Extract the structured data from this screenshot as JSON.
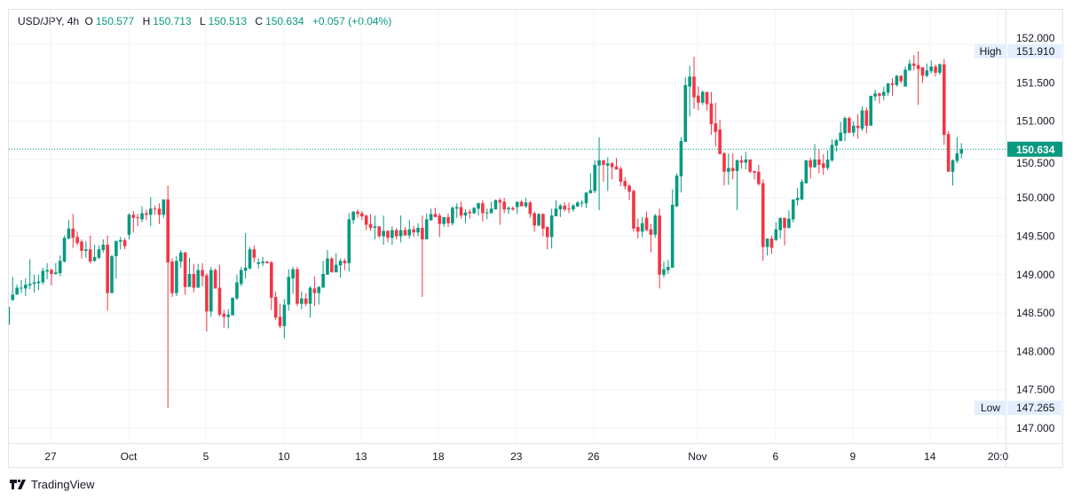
{
  "legend": {
    "symbol": "USD/JPY, 4h",
    "o_label": "O",
    "o": "150.577",
    "h_label": "H",
    "h": "150.713",
    "l_label": "L",
    "l": "150.513",
    "c_label": "C",
    "c": "150.634",
    "change": "+0.057 (+0.04%)"
  },
  "high_marker": {
    "label": "High",
    "value": "151.910"
  },
  "low_marker": {
    "label": "Low",
    "value": "147.265"
  },
  "last_price": "150.634",
  "branding": "TradingView",
  "colors": {
    "up": "#089981",
    "down": "#f23645",
    "grid": "#f0f3fa",
    "axis_text": "#131722",
    "marker_bg": "#e3effd"
  },
  "chart_data": {
    "type": "candlestick",
    "title": "USD/JPY, 4h",
    "ylim": [
      146.8,
      152.1
    ],
    "grid": true,
    "y_ticks": [
      "147.000",
      "147.500",
      "148.000",
      "148.500",
      "149.000",
      "149.500",
      "150.000",
      "150.500",
      "151.000",
      "151.500",
      "152.000"
    ],
    "x_ticks": [
      {
        "label": "27",
        "bar": 9.8
      },
      {
        "label": "Oct",
        "bar": 27.9
      },
      {
        "label": "5",
        "bar": 45.8
      },
      {
        "label": "10",
        "bar": 63.9
      },
      {
        "label": "13",
        "bar": 81.8
      },
      {
        "label": "18",
        "bar": 99.7
      },
      {
        "label": "23",
        "bar": 117.8
      },
      {
        "label": "26",
        "bar": 135.7
      },
      {
        "label": "Nov",
        "bar": 159.8
      },
      {
        "label": "6",
        "bar": 177.9
      },
      {
        "label": "9",
        "bar": 195.8
      },
      {
        "label": "14",
        "bar": 213.7
      },
      {
        "label": "20:0",
        "bar": 229.5
      }
    ],
    "ohlc_fields": [
      "open",
      "high",
      "low",
      "close"
    ],
    "candles": [
      [
        148.35,
        148.6,
        148.35,
        148.58
      ],
      [
        148.67,
        148.97,
        148.66,
        148.74
      ],
      [
        148.74,
        148.87,
        148.74,
        148.83
      ],
      [
        148.82,
        148.93,
        148.76,
        148.83
      ],
      [
        148.82,
        148.95,
        148.72,
        148.87
      ],
      [
        148.86,
        149.2,
        148.81,
        148.88
      ],
      [
        148.88,
        149.0,
        148.77,
        148.9
      ],
      [
        148.89,
        149.0,
        148.8,
        148.91
      ],
      [
        148.9,
        149.09,
        148.87,
        149.05
      ],
      [
        149.04,
        149.15,
        148.94,
        149.06
      ],
      [
        149.06,
        149.08,
        148.86,
        149.01
      ],
      [
        149.01,
        149.15,
        149.0,
        149.03
      ],
      [
        149.02,
        149.25,
        148.98,
        149.18
      ],
      [
        149.17,
        149.51,
        149.16,
        149.48
      ],
      [
        149.47,
        149.71,
        149.46,
        149.6
      ],
      [
        149.6,
        149.79,
        149.35,
        149.48
      ],
      [
        149.49,
        149.56,
        149.38,
        149.41
      ],
      [
        149.43,
        149.46,
        149.21,
        149.31
      ],
      [
        149.31,
        149.44,
        149.22,
        149.33
      ],
      [
        149.33,
        149.51,
        149.15,
        149.17
      ],
      [
        149.18,
        149.39,
        149.17,
        149.23
      ],
      [
        149.22,
        149.38,
        149.2,
        149.33
      ],
      [
        149.32,
        149.46,
        149.29,
        149.39
      ],
      [
        149.39,
        149.51,
        148.53,
        148.76
      ],
      [
        148.76,
        149.26,
        148.76,
        149.24
      ],
      [
        149.24,
        149.44,
        148.95,
        149.44
      ],
      [
        149.43,
        149.49,
        149.33,
        149.45
      ],
      [
        149.45,
        149.48,
        149.33,
        149.37
      ],
      [
        149.52,
        149.8,
        149.46,
        149.78
      ],
      [
        149.78,
        149.83,
        149.55,
        149.74
      ],
      [
        149.75,
        149.79,
        149.63,
        149.74
      ],
      [
        149.72,
        149.89,
        149.68,
        149.8
      ],
      [
        149.8,
        149.85,
        149.71,
        149.78
      ],
      [
        149.78,
        150.01,
        149.63,
        149.86
      ],
      [
        149.86,
        149.9,
        149.78,
        149.85
      ],
      [
        149.86,
        149.93,
        149.66,
        149.78
      ],
      [
        149.78,
        149.98,
        149.74,
        149.98
      ],
      [
        149.98,
        150.16,
        147.265,
        149.16
      ],
      [
        149.17,
        149.21,
        148.71,
        148.76
      ],
      [
        148.76,
        149.24,
        148.72,
        149.18
      ],
      [
        149.17,
        149.32,
        149.09,
        149.29
      ],
      [
        149.29,
        149.29,
        148.74,
        148.84
      ],
      [
        148.84,
        149.22,
        148.84,
        149.01
      ],
      [
        149.01,
        149.14,
        148.77,
        148.83
      ],
      [
        148.83,
        149.14,
        148.83,
        149.06
      ],
      [
        149.06,
        149.15,
        148.85,
        148.98
      ],
      [
        148.99,
        149.02,
        148.26,
        148.52
      ],
      [
        148.52,
        149.1,
        148.45,
        149.06
      ],
      [
        149.06,
        149.08,
        148.82,
        148.82
      ],
      [
        148.83,
        149.13,
        148.46,
        148.48
      ],
      [
        148.49,
        148.54,
        148.31,
        148.45
      ],
      [
        148.45,
        148.55,
        148.3,
        148.48
      ],
      [
        148.47,
        148.7,
        148.47,
        148.7
      ],
      [
        148.69,
        149.0,
        148.67,
        148.9
      ],
      [
        148.88,
        149.1,
        148.85,
        149.06
      ],
      [
        149.05,
        149.54,
        148.95,
        149.09
      ],
      [
        149.08,
        149.36,
        149.07,
        149.33
      ],
      [
        149.33,
        149.38,
        149.16,
        149.22
      ],
      [
        149.14,
        149.21,
        149.08,
        149.16
      ],
      [
        149.15,
        149.23,
        149.11,
        149.17
      ],
      [
        149.17,
        149.18,
        149.15,
        149.15
      ],
      [
        149.16,
        149.18,
        148.54,
        148.7
      ],
      [
        148.71,
        148.78,
        148.41,
        148.44
      ],
      [
        148.45,
        148.62,
        148.3,
        148.33
      ],
      [
        148.33,
        148.68,
        148.17,
        148.61
      ],
      [
        148.61,
        149.07,
        148.53,
        148.97
      ],
      [
        148.95,
        149.1,
        148.75,
        149.07
      ],
      [
        149.07,
        149.1,
        148.59,
        148.62
      ],
      [
        148.62,
        148.78,
        148.55,
        148.69
      ],
      [
        148.69,
        148.76,
        148.59,
        148.62
      ],
      [
        148.62,
        148.85,
        148.44,
        148.83
      ],
      [
        148.82,
        148.98,
        148.59,
        148.76
      ],
      [
        148.76,
        148.85,
        148.61,
        148.84
      ],
      [
        148.83,
        149.18,
        148.83,
        149.01
      ],
      [
        149.0,
        149.32,
        149.0,
        149.21
      ],
      [
        149.21,
        149.23,
        149.03,
        149.03
      ],
      [
        149.03,
        149.28,
        149.03,
        149.13
      ],
      [
        149.12,
        149.21,
        148.96,
        149.18
      ],
      [
        149.18,
        149.21,
        149.06,
        149.15
      ],
      [
        149.15,
        149.8,
        149.04,
        149.72
      ],
      [
        149.71,
        149.83,
        149.66,
        149.82
      ],
      [
        149.82,
        149.85,
        149.74,
        149.79
      ],
      [
        149.8,
        149.83,
        149.71,
        149.76
      ],
      [
        149.77,
        149.78,
        149.58,
        149.65
      ],
      [
        149.66,
        149.79,
        149.57,
        149.61
      ],
      [
        149.61,
        149.77,
        149.46,
        149.63
      ],
      [
        149.63,
        149.63,
        149.48,
        149.5
      ],
      [
        149.5,
        149.77,
        149.39,
        149.57
      ],
      [
        149.57,
        149.58,
        149.42,
        149.48
      ],
      [
        149.48,
        149.63,
        149.39,
        149.58
      ],
      [
        149.58,
        149.61,
        149.46,
        149.5
      ],
      [
        149.5,
        149.77,
        149.42,
        149.58
      ],
      [
        149.58,
        149.62,
        149.51,
        149.51
      ],
      [
        149.51,
        149.71,
        149.47,
        149.59
      ],
      [
        149.59,
        149.64,
        149.49,
        149.55
      ],
      [
        149.55,
        149.67,
        149.5,
        149.61
      ],
      [
        149.61,
        149.77,
        148.71,
        149.46
      ],
      [
        149.46,
        149.8,
        149.46,
        149.72
      ],
      [
        149.71,
        149.86,
        149.7,
        149.79
      ],
      [
        149.79,
        149.87,
        149.75,
        149.75
      ],
      [
        149.77,
        149.8,
        149.49,
        149.66
      ],
      [
        149.66,
        149.75,
        149.62,
        149.75
      ],
      [
        149.75,
        149.8,
        149.62,
        149.67
      ],
      [
        149.67,
        149.89,
        149.64,
        149.87
      ],
      [
        149.86,
        149.93,
        149.74,
        149.88
      ],
      [
        149.88,
        149.95,
        149.73,
        149.77
      ],
      [
        149.77,
        149.85,
        149.67,
        149.81
      ],
      [
        149.82,
        149.85,
        149.73,
        149.8
      ],
      [
        149.8,
        149.88,
        149.79,
        149.87
      ],
      [
        149.86,
        149.94,
        149.77,
        149.93
      ],
      [
        149.93,
        149.97,
        149.69,
        149.8
      ],
      [
        149.8,
        149.86,
        149.72,
        149.81
      ],
      [
        149.8,
        149.95,
        149.8,
        149.86
      ],
      [
        149.85,
        149.98,
        149.85,
        149.97
      ],
      [
        149.97,
        150.0,
        149.65,
        149.94
      ],
      [
        149.95,
        150.0,
        149.8,
        149.85
      ],
      [
        149.85,
        149.89,
        149.79,
        149.87
      ],
      [
        149.87,
        149.89,
        149.83,
        149.85
      ],
      [
        149.88,
        149.95,
        149.79,
        149.95
      ],
      [
        149.95,
        149.97,
        149.89,
        149.89
      ],
      [
        149.89,
        150.0,
        149.87,
        149.94
      ],
      [
        149.94,
        149.96,
        149.74,
        149.79
      ],
      [
        149.8,
        149.82,
        149.56,
        149.64
      ],
      [
        149.64,
        149.8,
        149.63,
        149.79
      ],
      [
        149.79,
        149.8,
        149.5,
        149.6
      ],
      [
        149.62,
        149.63,
        149.33,
        149.49
      ],
      [
        149.49,
        149.86,
        149.34,
        149.77
      ],
      [
        149.76,
        149.97,
        149.76,
        149.86
      ],
      [
        149.85,
        149.92,
        149.75,
        149.9
      ],
      [
        149.9,
        149.94,
        149.82,
        149.85
      ],
      [
        149.86,
        149.94,
        149.8,
        149.85
      ],
      [
        149.85,
        149.92,
        149.82,
        149.9
      ],
      [
        149.89,
        149.96,
        149.88,
        149.94
      ],
      [
        149.93,
        149.97,
        149.88,
        149.94
      ],
      [
        149.93,
        150.07,
        149.87,
        150.07
      ],
      [
        150.06,
        150.32,
        150.06,
        150.1
      ],
      [
        150.09,
        150.49,
        150.06,
        150.43
      ],
      [
        150.42,
        150.79,
        149.84,
        150.49
      ],
      [
        150.49,
        150.49,
        150.21,
        150.43
      ],
      [
        150.42,
        150.53,
        150.09,
        150.45
      ],
      [
        150.45,
        150.47,
        150.24,
        150.4
      ],
      [
        150.41,
        150.52,
        150.37,
        150.37
      ],
      [
        150.38,
        150.41,
        150.15,
        150.21
      ],
      [
        150.22,
        150.27,
        150.11,
        150.15
      ],
      [
        150.16,
        150.18,
        149.97,
        150.08
      ],
      [
        150.09,
        150.11,
        149.56,
        149.6
      ],
      [
        149.62,
        149.73,
        149.47,
        149.56
      ],
      [
        149.56,
        149.75,
        149.49,
        149.67
      ],
      [
        149.74,
        149.82,
        149.57,
        149.58
      ],
      [
        149.59,
        149.66,
        149.29,
        149.52
      ],
      [
        149.52,
        149.79,
        149.48,
        149.77
      ],
      [
        149.77,
        149.86,
        148.82,
        149.0
      ],
      [
        149.0,
        149.17,
        148.96,
        149.07
      ],
      [
        149.06,
        149.19,
        149.01,
        149.1
      ],
      [
        149.09,
        150.11,
        149.09,
        149.91
      ],
      [
        149.89,
        150.32,
        149.88,
        150.29
      ],
      [
        150.28,
        150.79,
        150.07,
        150.74
      ],
      [
        150.73,
        151.57,
        150.73,
        151.47
      ],
      [
        151.45,
        151.72,
        151.06,
        151.58
      ],
      [
        151.58,
        151.84,
        151.16,
        151.31
      ],
      [
        151.33,
        151.45,
        151.14,
        151.24
      ],
      [
        151.24,
        151.4,
        151.21,
        151.38
      ],
      [
        151.38,
        151.38,
        151.14,
        151.22
      ],
      [
        151.23,
        151.38,
        150.82,
        150.96
      ],
      [
        150.97,
        151.24,
        150.67,
        150.86
      ],
      [
        150.89,
        151.02,
        150.57,
        150.57
      ],
      [
        150.58,
        150.6,
        150.16,
        150.34
      ],
      [
        150.34,
        150.58,
        150.17,
        150.39
      ],
      [
        150.39,
        150.58,
        150.24,
        150.35
      ],
      [
        150.35,
        150.5,
        149.84,
        150.49
      ],
      [
        150.49,
        150.55,
        150.38,
        150.46
      ],
      [
        150.46,
        150.6,
        150.37,
        150.5
      ],
      [
        150.5,
        150.5,
        150.32,
        150.34
      ],
      [
        150.35,
        150.35,
        150.24,
        150.33
      ],
      [
        150.34,
        150.43,
        150.16,
        150.18
      ],
      [
        150.19,
        150.24,
        149.18,
        149.36
      ],
      [
        149.36,
        149.47,
        149.25,
        149.47
      ],
      [
        149.47,
        149.51,
        149.27,
        149.35
      ],
      [
        149.45,
        149.68,
        149.44,
        149.59
      ],
      [
        149.58,
        149.74,
        149.47,
        149.74
      ],
      [
        149.74,
        149.74,
        149.38,
        149.61
      ],
      [
        149.61,
        149.84,
        149.6,
        149.73
      ],
      [
        149.72,
        149.98,
        149.68,
        149.98
      ],
      [
        149.97,
        150.13,
        149.9,
        150.0
      ],
      [
        149.98,
        150.24,
        149.97,
        150.21
      ],
      [
        150.19,
        150.49,
        150.19,
        150.49
      ],
      [
        150.49,
        150.52,
        150.25,
        150.4
      ],
      [
        150.4,
        150.7,
        150.39,
        150.5
      ],
      [
        150.5,
        150.63,
        150.32,
        150.43
      ],
      [
        150.45,
        150.57,
        150.3,
        150.39
      ],
      [
        150.39,
        150.62,
        150.36,
        150.5
      ],
      [
        150.49,
        150.76,
        150.47,
        150.69
      ],
      [
        150.68,
        150.77,
        150.6,
        150.75
      ],
      [
        150.74,
        150.99,
        150.74,
        150.85
      ],
      [
        150.84,
        151.06,
        150.74,
        151.04
      ],
      [
        151.04,
        151.06,
        150.84,
        150.85
      ],
      [
        150.85,
        151.0,
        150.8,
        150.94
      ],
      [
        150.94,
        151.09,
        150.77,
        150.91
      ],
      [
        150.9,
        151.19,
        150.87,
        151.14
      ],
      [
        151.14,
        151.18,
        150.84,
        150.94
      ],
      [
        150.94,
        151.33,
        150.94,
        151.33
      ],
      [
        151.32,
        151.41,
        151.26,
        151.36
      ],
      [
        151.36,
        151.37,
        151.23,
        151.33
      ],
      [
        151.33,
        151.45,
        151.27,
        151.38
      ],
      [
        151.37,
        151.5,
        151.33,
        151.49
      ],
      [
        151.49,
        151.56,
        151.33,
        151.47
      ],
      [
        151.47,
        151.6,
        151.45,
        151.59
      ],
      [
        151.59,
        151.6,
        151.49,
        151.52
      ],
      [
        151.45,
        151.71,
        151.45,
        151.67
      ],
      [
        151.66,
        151.8,
        151.66,
        151.75
      ],
      [
        151.75,
        151.86,
        151.66,
        151.72
      ],
      [
        151.73,
        151.91,
        151.21,
        151.68
      ],
      [
        151.7,
        151.7,
        151.5,
        151.59
      ],
      [
        151.59,
        151.75,
        151.57,
        151.66
      ],
      [
        151.65,
        151.79,
        151.62,
        151.71
      ],
      [
        151.71,
        151.74,
        151.58,
        151.63
      ],
      [
        151.63,
        151.75,
        151.6,
        151.74
      ],
      [
        151.74,
        151.81,
        150.69,
        150.82
      ],
      [
        150.83,
        150.87,
        150.34,
        150.34
      ],
      [
        150.34,
        150.5,
        150.16,
        150.49
      ],
      [
        150.48,
        150.79,
        150.45,
        150.58
      ],
      [
        150.577,
        150.713,
        150.513,
        150.634
      ]
    ]
  }
}
